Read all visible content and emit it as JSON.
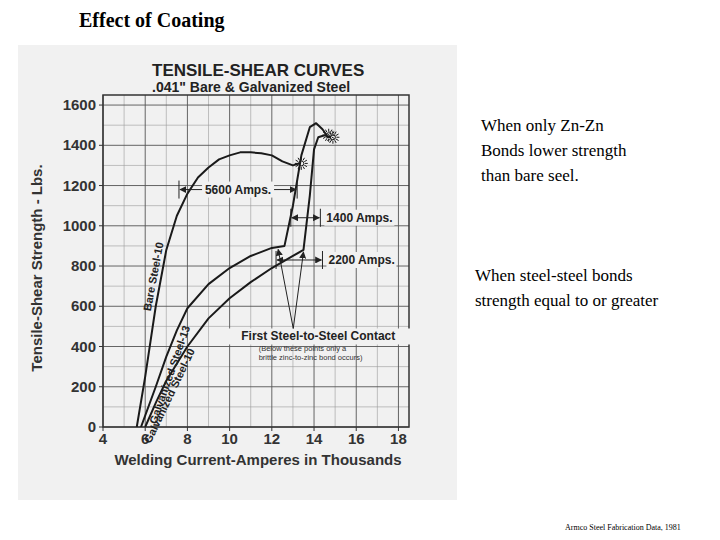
{
  "title": "Effect of Coating",
  "chart_data": {
    "type": "line",
    "title": "TENSILE-SHEAR CURVES",
    "subtitle": ".041\" Bare & Galvanized Steel",
    "x_label": "Welding Current-Amperes in Thousands",
    "y_label": "Tensile-Shear Strength - Lbs.",
    "xlim": [
      4,
      18.5
    ],
    "ylim": [
      0,
      1650
    ],
    "xticks": [
      4,
      6,
      8,
      10,
      12,
      14,
      16,
      18
    ],
    "yticks": [
      0,
      200,
      400,
      600,
      800,
      1000,
      1200,
      1400,
      1600
    ],
    "grid": true,
    "series": [
      {
        "name": "Bare Steel-10",
        "color": "#1a1a1a",
        "marker": "burst",
        "line_style": "solid",
        "x": [
          5.6,
          6.0,
          6.5,
          7.0,
          7.5,
          8.0,
          8.5,
          9.0,
          9.5,
          10.0,
          10.5,
          11.0,
          11.5,
          12.0,
          12.5,
          13.0,
          13.3
        ],
        "values": [
          0,
          250,
          600,
          880,
          1050,
          1160,
          1240,
          1290,
          1330,
          1350,
          1365,
          1365,
          1360,
          1350,
          1320,
          1300,
          1310
        ]
      },
      {
        "name": "Galvanized Steel-13",
        "color": "#1a1a1a",
        "marker": "burst",
        "line_style": "solid",
        "x": [
          5.8,
          6.5,
          7.0,
          7.5,
          8.0,
          9.0,
          10.0,
          11.0,
          12.0,
          12.6,
          13.0,
          13.4,
          13.8,
          14.1,
          14.4,
          14.6
        ],
        "values": [
          0,
          200,
          350,
          480,
          590,
          710,
          790,
          850,
          890,
          900,
          1100,
          1350,
          1490,
          1510,
          1480,
          1450
        ]
      },
      {
        "name": "Galvanized Steel-10",
        "color": "#1a1a1a",
        "marker": "burst",
        "line_style": "solid",
        "x": [
          6.0,
          6.5,
          7.0,
          8.0,
          9.0,
          10.0,
          11.0,
          12.0,
          13.0,
          13.5,
          13.8,
          14.0,
          14.2,
          14.5,
          14.8
        ],
        "values": [
          0,
          120,
          230,
          400,
          540,
          640,
          720,
          790,
          850,
          880,
          1150,
          1380,
          1440,
          1450,
          1440
        ]
      }
    ],
    "annotations": [
      {
        "text": "5600 Amps.",
        "x": [
          7.6,
          13.2
        ],
        "y": 1180
      },
      {
        "text": "1400 Amps.",
        "x": [
          12.9,
          14.3
        ],
        "y": 1040
      },
      {
        "text": "2200 Amps.",
        "x": [
          12.2,
          14.4
        ],
        "y": 830
      },
      {
        "text": "First Steel-to-Steel Contact",
        "note": [
          "(Below these points only a",
          "brittle zinc-to-zinc bond occurs)"
        ],
        "x": 14.2,
        "y": 430,
        "points": [
          [
            12.3,
            893
          ],
          [
            13.5,
            880
          ]
        ]
      }
    ]
  },
  "notes": [
    {
      "lines": [
        "When only Zn-Zn",
        "Bonds lower strength",
        "than bare seel."
      ]
    },
    {
      "lines": [
        "When steel-steel bonds",
        "strength equal to or greater"
      ]
    }
  ],
  "source": "Armco Steel Fabrication Data, 1981"
}
